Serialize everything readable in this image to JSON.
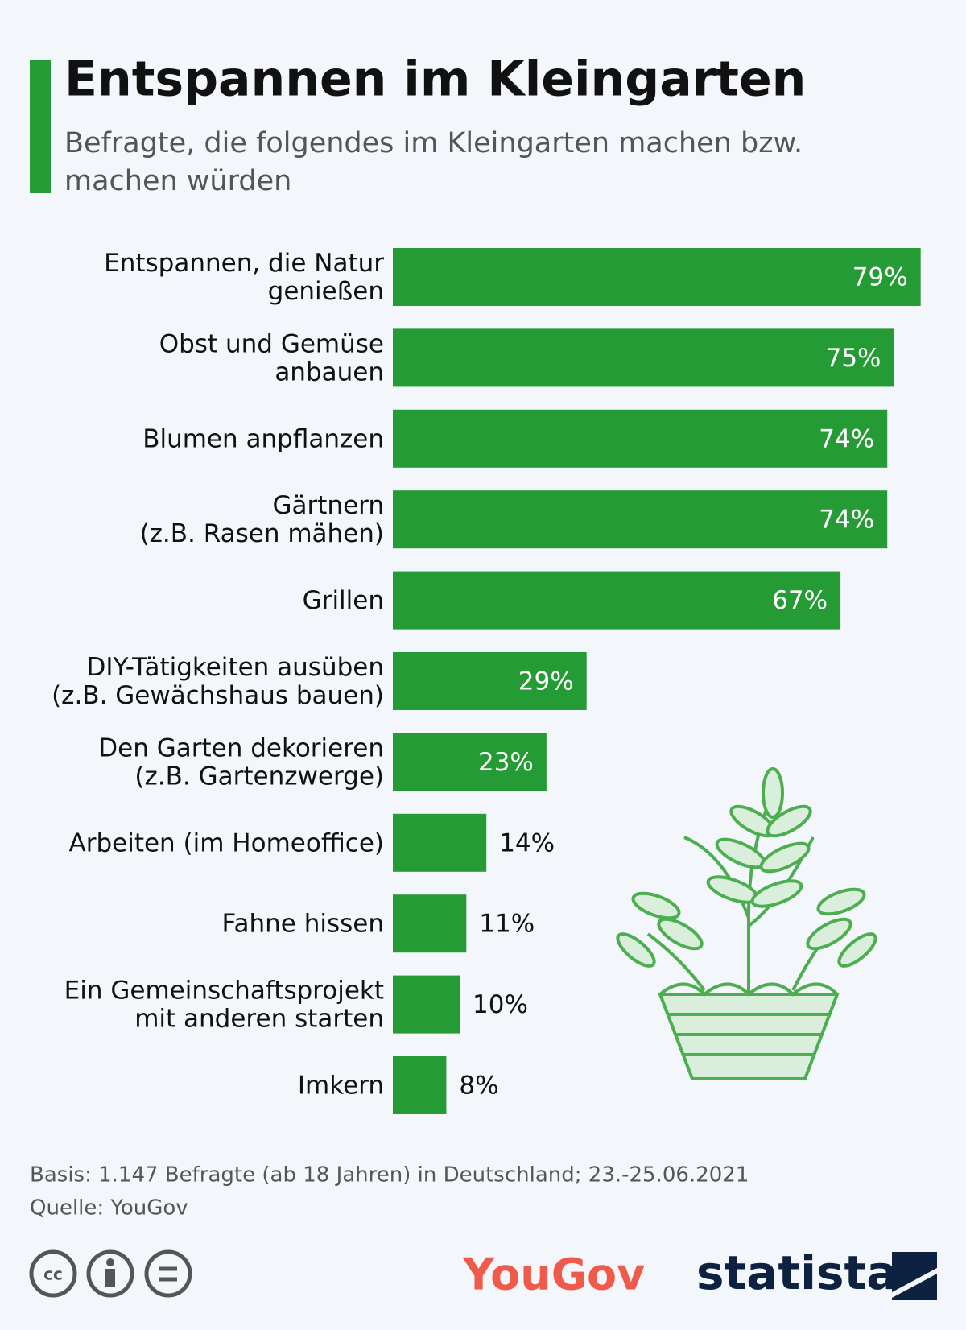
{
  "chart_data": {
    "type": "bar",
    "orientation": "horizontal",
    "title": "Entspannen im Kleingarten",
    "subtitle": [
      "Befragte, die folgendes im Kleingarten machen bzw.",
      "machen würden"
    ],
    "categories": [
      [
        "Entspannen, die Natur",
        "genießen"
      ],
      [
        "Obst und Gemüse",
        "anbauen"
      ],
      [
        "Blumen anpflanzen"
      ],
      [
        "Gärtnern",
        "(z.B. Rasen mähen)"
      ],
      [
        "Grillen"
      ],
      [
        "DIY-Tätigkeiten ausüben",
        "(z.B. Gewächshaus bauen)"
      ],
      [
        "Den Garten dekorieren",
        "(z.B. Gartenzwerge)"
      ],
      [
        "Arbeiten (im Homeoffice)"
      ],
      [
        "Fahne hissen"
      ],
      [
        "Ein Gemeinschaftsprojekt",
        "mit anderen starten"
      ],
      [
        "Imkern"
      ]
    ],
    "values": [
      79,
      75,
      74,
      74,
      67,
      29,
      23,
      14,
      11,
      10,
      8
    ],
    "value_labels": [
      "79%",
      "75%",
      "74%",
      "74%",
      "67%",
      "29%",
      "23%",
      "14%",
      "11%",
      "10%",
      "8%"
    ],
    "color": "#259b35",
    "source": [
      "Basis: 1.147 Befragte (ab 18 Jahren) in Deutschland; 23.-25.06.2021",
      "Quelle: YouGov"
    ],
    "logos": [
      "YouGov",
      "statista"
    ]
  }
}
